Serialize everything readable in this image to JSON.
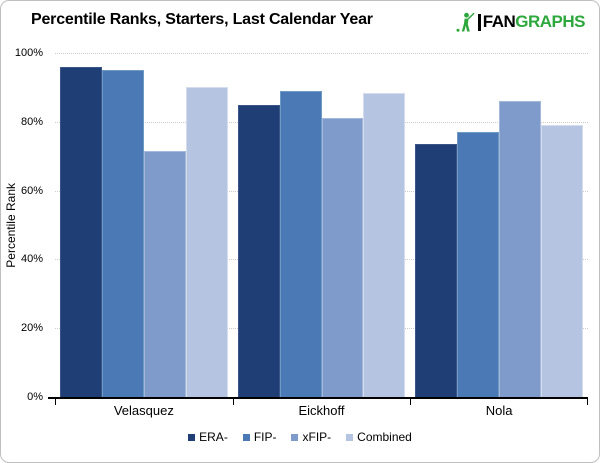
{
  "header": {
    "title": "Percentile Ranks, Starters, Last Calendar Year",
    "logo": {
      "fan": "FAN",
      "graphs": "GRAPHS"
    }
  },
  "colors": {
    "logo_green": "#2DA83C",
    "axis": "#000000",
    "gridline": "#CCCCCC",
    "frame_border": "#BFBFBF"
  },
  "chart_data": {
    "type": "bar",
    "title": "Percentile Ranks, Starters, Last Calendar Year",
    "categories": [
      "Velasquez",
      "Eickhoff",
      "Nola"
    ],
    "series": [
      {
        "name": "ERA-",
        "color": "#1F3E75",
        "border": "#3A5689",
        "values": [
          96,
          85,
          73.5
        ]
      },
      {
        "name": "FIP-",
        "color": "#4A79B6",
        "border": "#6E9AC6",
        "values": [
          95,
          89,
          77
        ]
      },
      {
        "name": "xFIP-",
        "color": "#7E9BCB",
        "border": "#A3B8DB",
        "values": [
          71.5,
          81,
          86
        ]
      },
      {
        "name": "Combined",
        "color": "#B4C4E1",
        "border": "#D3DDEC",
        "values": [
          90,
          88.5,
          79
        ]
      }
    ],
    "ylabel": "Percentile Rank",
    "ylim": [
      0,
      100
    ],
    "ytick_percent": [
      0,
      20,
      40,
      60,
      80,
      100
    ],
    "ytick_labels": [
      "0%",
      "20%",
      "40%",
      "60%",
      "80%",
      "100%"
    ],
    "grid": "horizontal-dotted",
    "legend_position": "bottom"
  }
}
